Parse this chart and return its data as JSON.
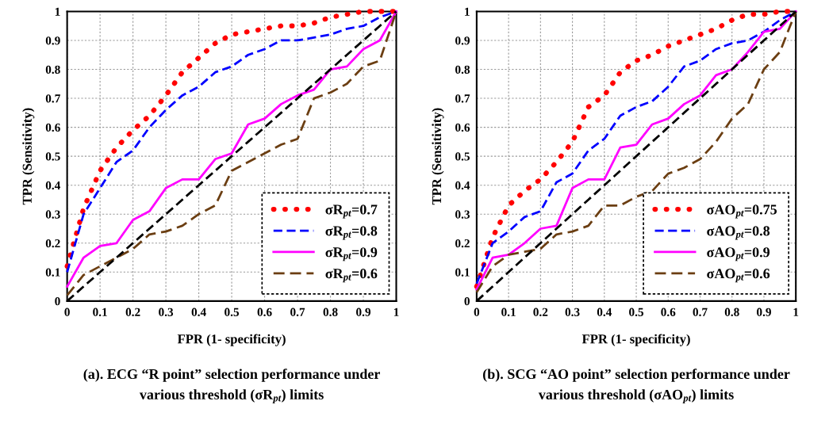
{
  "chart_data": [
    {
      "type": "line",
      "xlabel": "FPR (1- specificity)",
      "ylabel": "TPR (Sensitivity)",
      "xlim": [
        0,
        1
      ],
      "ylim": [
        0,
        1
      ],
      "xticks": [
        0,
        0.1,
        0.2,
        0.3,
        0.4,
        0.5,
        0.6,
        0.7,
        0.8,
        0.9,
        1
      ],
      "yticks": [
        0,
        0.1,
        0.2,
        0.3,
        0.4,
        0.5,
        0.6,
        0.7,
        0.8,
        0.9,
        1
      ],
      "grid": true,
      "legend": "bottom right",
      "marker": "none",
      "x": [
        0,
        0.05,
        0.1,
        0.15,
        0.2,
        0.25,
        0.3,
        0.35,
        0.4,
        0.45,
        0.5,
        0.55,
        0.6,
        0.65,
        0.7,
        0.75,
        0.8,
        0.85,
        0.9,
        0.95,
        1
      ],
      "series": [
        {
          "name": "σR$_{pt}$=0.7",
          "color": "#ff0000",
          "line_style": "dotted",
          "values": [
            0.12,
            0.32,
            0.45,
            0.53,
            0.59,
            0.64,
            0.71,
            0.79,
            0.84,
            0.89,
            0.92,
            0.93,
            0.94,
            0.95,
            0.95,
            0.96,
            0.98,
            0.99,
            1.0,
            1.0,
            1.0
          ]
        },
        {
          "name": "σR$_{pt}$=0.8",
          "color": "#0000ff",
          "line_style": "dashed",
          "values": [
            0.1,
            0.3,
            0.39,
            0.48,
            0.52,
            0.6,
            0.66,
            0.71,
            0.74,
            0.79,
            0.81,
            0.85,
            0.87,
            0.9,
            0.9,
            0.91,
            0.92,
            0.94,
            0.95,
            0.98,
            1.0
          ]
        },
        {
          "name": "σR$_{pt}$=0.9",
          "color": "#ff00ff",
          "line_style": "solid",
          "values": [
            0.05,
            0.15,
            0.19,
            0.2,
            0.28,
            0.31,
            0.39,
            0.42,
            0.42,
            0.49,
            0.51,
            0.61,
            0.63,
            0.68,
            0.71,
            0.73,
            0.8,
            0.81,
            0.87,
            0.9,
            1.0
          ]
        },
        {
          "name": "σR$_{pt}$=0.6",
          "color": "#6b3e12",
          "line_style": "dashed",
          "values": [
            0.02,
            0.09,
            0.12,
            0.15,
            0.18,
            0.23,
            0.24,
            0.26,
            0.3,
            0.33,
            0.45,
            0.48,
            0.51,
            0.54,
            0.56,
            0.7,
            0.72,
            0.75,
            0.81,
            0.83,
            1.0
          ]
        },
        {
          "color": "#000000",
          "line_style": "dashed",
          "values": [
            0,
            0.05,
            0.1,
            0.15,
            0.2,
            0.25,
            0.3,
            0.35,
            0.4,
            0.45,
            0.5,
            0.55,
            0.6,
            0.65,
            0.7,
            0.75,
            0.8,
            0.85,
            0.9,
            0.95,
            1
          ]
        }
      ],
      "annotations": [
        "(a). ECG “R point” selection performance under",
        "various threshold (σR$_{pt}$) limits"
      ]
    },
    {
      "type": "line",
      "xlabel": "FPR (1- specificity)",
      "ylabel": "TPR (Sensitivity)",
      "xlim": [
        0,
        1
      ],
      "ylim": [
        0,
        1
      ],
      "xticks": [
        0,
        0.1,
        0.2,
        0.3,
        0.4,
        0.5,
        0.6,
        0.7,
        0.8,
        0.9,
        1
      ],
      "yticks": [
        0,
        0.1,
        0.2,
        0.3,
        0.4,
        0.5,
        0.6,
        0.7,
        0.8,
        0.9,
        1
      ],
      "grid": true,
      "legend": "bottom right",
      "marker": "none",
      "x": [
        0,
        0.05,
        0.1,
        0.15,
        0.2,
        0.25,
        0.3,
        0.35,
        0.4,
        0.45,
        0.5,
        0.55,
        0.6,
        0.65,
        0.7,
        0.75,
        0.8,
        0.85,
        0.9,
        0.95,
        1
      ],
      "series": [
        {
          "name": "σAO$_{pt}$=0.75",
          "color": "#ff0000",
          "line_style": "dotted",
          "values": [
            0.05,
            0.22,
            0.33,
            0.38,
            0.42,
            0.48,
            0.55,
            0.67,
            0.71,
            0.79,
            0.83,
            0.85,
            0.88,
            0.9,
            0.92,
            0.94,
            0.97,
            0.99,
            0.99,
            1.0,
            1.0
          ]
        },
        {
          "name": "σAO$_{pt}$=0.8",
          "color": "#0000ff",
          "line_style": "dashed",
          "values": [
            0.06,
            0.2,
            0.24,
            0.29,
            0.31,
            0.41,
            0.44,
            0.52,
            0.56,
            0.64,
            0.67,
            0.69,
            0.74,
            0.81,
            0.83,
            0.87,
            0.89,
            0.9,
            0.93,
            0.97,
            1.0
          ]
        },
        {
          "name": "σAO$_{pt}$=0.9",
          "color": "#ff00ff",
          "line_style": "solid",
          "values": [
            0.04,
            0.15,
            0.16,
            0.2,
            0.25,
            0.26,
            0.39,
            0.42,
            0.42,
            0.53,
            0.54,
            0.61,
            0.63,
            0.68,
            0.71,
            0.78,
            0.8,
            0.86,
            0.93,
            0.94,
            1.0
          ]
        },
        {
          "name": "σAO$_{pt}$=0.6",
          "color": "#6b3e12",
          "line_style": "dashed",
          "values": [
            0.03,
            0.12,
            0.16,
            0.17,
            0.18,
            0.23,
            0.24,
            0.26,
            0.33,
            0.33,
            0.36,
            0.38,
            0.44,
            0.46,
            0.49,
            0.55,
            0.63,
            0.68,
            0.8,
            0.86,
            1.0
          ]
        },
        {
          "color": "#000000",
          "line_style": "dashed",
          "values": [
            0,
            0.05,
            0.1,
            0.15,
            0.2,
            0.25,
            0.3,
            0.35,
            0.4,
            0.45,
            0.5,
            0.55,
            0.6,
            0.65,
            0.7,
            0.75,
            0.8,
            0.85,
            0.9,
            0.95,
            1
          ]
        }
      ],
      "annotations": [
        "(b). SCG “AO point” selection performance under",
        "various threshold (σAO$_{pt}$) limits"
      ]
    }
  ]
}
